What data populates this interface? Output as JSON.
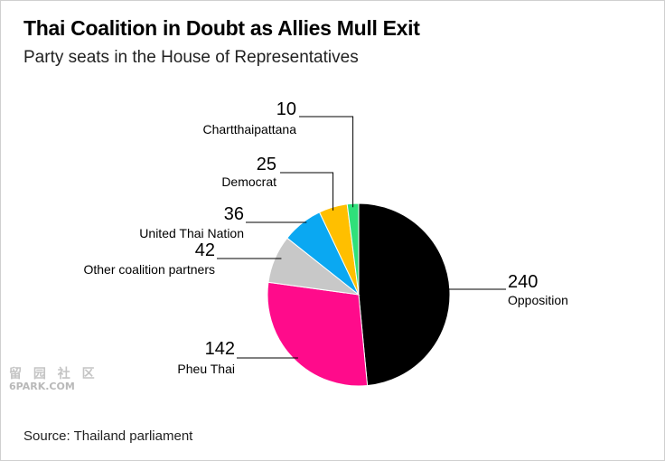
{
  "header": {
    "title": "Thai Coalition in Doubt as Allies Mull Exit",
    "subtitle": "Party seats in the House of Representatives"
  },
  "footer": {
    "source": "Source: Thailand parliament"
  },
  "watermark": {
    "glyphs": "留 园 社 区",
    "site": "6PARK.COM"
  },
  "chart_data": {
    "type": "pie",
    "title": "Thai Coalition in Doubt as Allies Mull Exit",
    "subtitle": "Party seats in the House of Representatives",
    "legend": "none",
    "slices": [
      {
        "label": "Opposition",
        "value": 240,
        "color": "#000000"
      },
      {
        "label": "Pheu Thai",
        "value": 142,
        "color": "#ff0b8b"
      },
      {
        "label": "Other coalition partners",
        "value": 42,
        "color": "#c8c8c8"
      },
      {
        "label": "United Thai Nation",
        "value": 36,
        "color": "#0aa8f2"
      },
      {
        "label": "Democrat",
        "value": 25,
        "color": "#ffbf00"
      },
      {
        "label": "Chartthaipattana",
        "value": 10,
        "color": "#2fe07a"
      }
    ]
  }
}
